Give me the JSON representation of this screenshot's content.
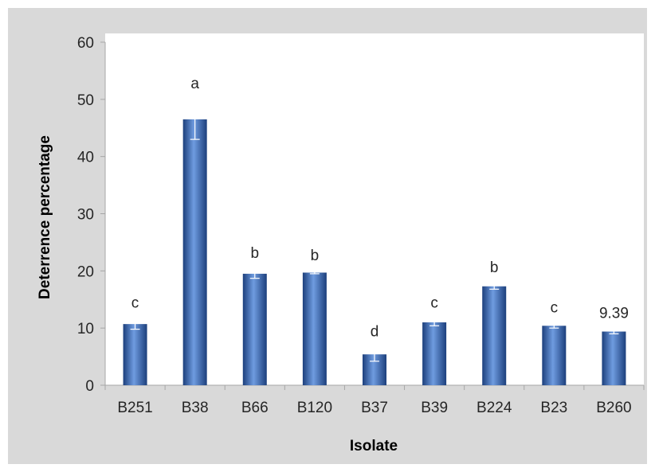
{
  "chart_data": {
    "type": "bar",
    "title": "",
    "xlabel": "Isolate",
    "ylabel": "Deterrence percentage",
    "ylim": [
      0,
      60
    ],
    "yticks": [
      0,
      10,
      20,
      30,
      40,
      50,
      60
    ],
    "grid": false,
    "legend": "none",
    "categories": [
      "B251",
      "B38",
      "B66",
      "B120",
      "B37",
      "B39",
      "B224",
      "B23",
      "B260"
    ],
    "values": [
      10.7,
      46.5,
      19.5,
      19.7,
      5.4,
      11.0,
      17.3,
      10.4,
      9.39
    ],
    "error": [
      0.9,
      3.5,
      0.8,
      0.2,
      1.2,
      0.6,
      0.5,
      0.4,
      0.4
    ],
    "labels": [
      "c",
      "a",
      "b",
      "b",
      "d",
      "c",
      "b",
      "c",
      "9.39"
    ],
    "colors": {
      "bar_light": "#6f9ce0",
      "bar_mid": "#2f66c0",
      "bar_dark": "#1c3f7c",
      "error_bar": "#ffffff",
      "plot_bg": "#ffffff",
      "frame_bg": "#d9d9d9",
      "axis": "#a6a6a6"
    }
  }
}
